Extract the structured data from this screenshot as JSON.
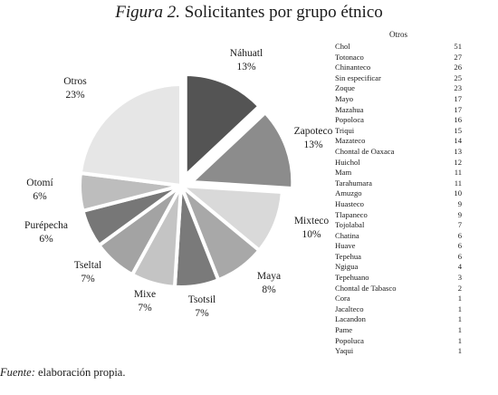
{
  "title": {
    "figure_label": "Figura 2.",
    "text": "Solicitantes por grupo étnico"
  },
  "chart_data": {
    "type": "pie",
    "title": "Figura 2. Solicitantes por grupo étnico",
    "slices": [
      {
        "label": "Náhuatl",
        "value": 13,
        "display": "13%",
        "color": "#545454",
        "exploded": true
      },
      {
        "label": "Zapoteco",
        "value": 13,
        "display": "13%",
        "color": "#8c8c8c",
        "exploded": true
      },
      {
        "label": "Mixteco",
        "value": 10,
        "display": "10%",
        "color": "#d9d9d9",
        "exploded": false
      },
      {
        "label": "Maya",
        "value": 8,
        "display": "8%",
        "color": "#a8a8a8",
        "exploded": false
      },
      {
        "label": "Tsotsil",
        "value": 7,
        "display": "7%",
        "color": "#7a7a7a",
        "exploded": false
      },
      {
        "label": "Mixe",
        "value": 7,
        "display": "7%",
        "color": "#c4c4c4",
        "exploded": false
      },
      {
        "label": "Tseltal",
        "value": 7,
        "display": "7%",
        "color": "#a3a3a3",
        "exploded": false
      },
      {
        "label": "Purépecha",
        "value": 6,
        "display": "6%",
        "color": "#777777",
        "exploded": false
      },
      {
        "label": "Otomí",
        "value": 6,
        "display": "6%",
        "color": "#bdbdbd",
        "exploded": false
      },
      {
        "label": "Otros",
        "value": 23,
        "display": "23%",
        "color": "#e6e6e6",
        "exploded": false
      }
    ]
  },
  "others": {
    "title": "Otros",
    "items": [
      {
        "name": "Chol",
        "count": "51"
      },
      {
        "name": "Totonaco",
        "count": "27"
      },
      {
        "name": "Chinanteco",
        "count": "26"
      },
      {
        "name": "Sin especificar",
        "count": "25"
      },
      {
        "name": "Zoque",
        "count": "23"
      },
      {
        "name": "Mayo",
        "count": "17"
      },
      {
        "name": "Mazahua",
        "count": "17"
      },
      {
        "name": "Popoloca",
        "count": "16"
      },
      {
        "name": "Triqui",
        "count": "15"
      },
      {
        "name": "Mazateco",
        "count": "14"
      },
      {
        "name": "Chontal de Oaxaca",
        "count": "13"
      },
      {
        "name": "Huichol",
        "count": "12"
      },
      {
        "name": "Mam",
        "count": "11"
      },
      {
        "name": "Tarahumara",
        "count": "11"
      },
      {
        "name": "Amuzgo",
        "count": "10"
      },
      {
        "name": "Huasteco",
        "count": "9"
      },
      {
        "name": "Tlapaneco",
        "count": "9"
      },
      {
        "name": "Tojolabal",
        "count": "7"
      },
      {
        "name": "Chatina",
        "count": "6"
      },
      {
        "name": "Huave",
        "count": "6"
      },
      {
        "name": "Tepehua",
        "count": "6"
      },
      {
        "name": "Ngigua",
        "count": "4"
      },
      {
        "name": "Tepehuano",
        "count": "3"
      },
      {
        "name": "Chontal de Tabasco",
        "count": "2"
      },
      {
        "name": "Cora",
        "count": "1"
      },
      {
        "name": "Jacalteco",
        "count": "1"
      },
      {
        "name": "Lacandon",
        "count": "1"
      },
      {
        "name": "Pame",
        "count": "1"
      },
      {
        "name": "Popoluca",
        "count": "1"
      },
      {
        "name": "Yaqui",
        "count": "1"
      }
    ]
  },
  "source": {
    "label": "Fuente:",
    "text": " elaboración propia."
  }
}
